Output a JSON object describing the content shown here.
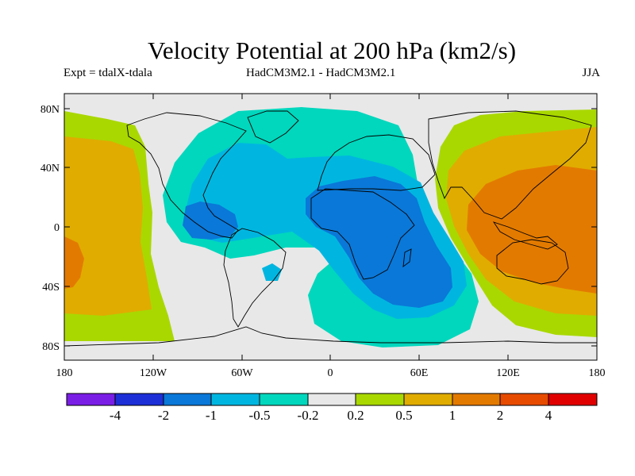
{
  "title": "Velocity Potential at 200 hPa (km2/s)",
  "subtitle_left": "Expt = tdalX-tdala",
  "subtitle_center": "HadCM3M2.1 - HadCM3M2.1",
  "subtitle_right": "JJA",
  "map": {
    "projection": "cylindrical equidistant",
    "lat_ticks": [
      "80N",
      "40N",
      "0",
      "40S",
      "80S"
    ],
    "lon_ticks": [
      "180",
      "120W",
      "60W",
      "0",
      "60E",
      "120E",
      "180"
    ]
  },
  "colors": {
    "neutral": "#e8e8e8",
    "neg_02_05": "#00d7bd",
    "neg_05_1": "#00b6e0",
    "neg_1_2": "#0a78d8",
    "pos_02_05": "#a9d800",
    "pos_05_1": "#e0ac00",
    "pos_1_2": "#e37a00"
  },
  "colorbar": {
    "colors": [
      "#7a1ee6",
      "#1d2fd7",
      "#0a78d8",
      "#00b6e0",
      "#00d7bd",
      "#e8e8e8",
      "#a9d800",
      "#e0ac00",
      "#e37a00",
      "#e64b00",
      "#e00000"
    ],
    "labels": [
      "-4",
      "-2",
      "-1",
      "-0.5",
      "-0.2",
      "0.2",
      "0.5",
      "1",
      "2",
      "4"
    ]
  }
}
